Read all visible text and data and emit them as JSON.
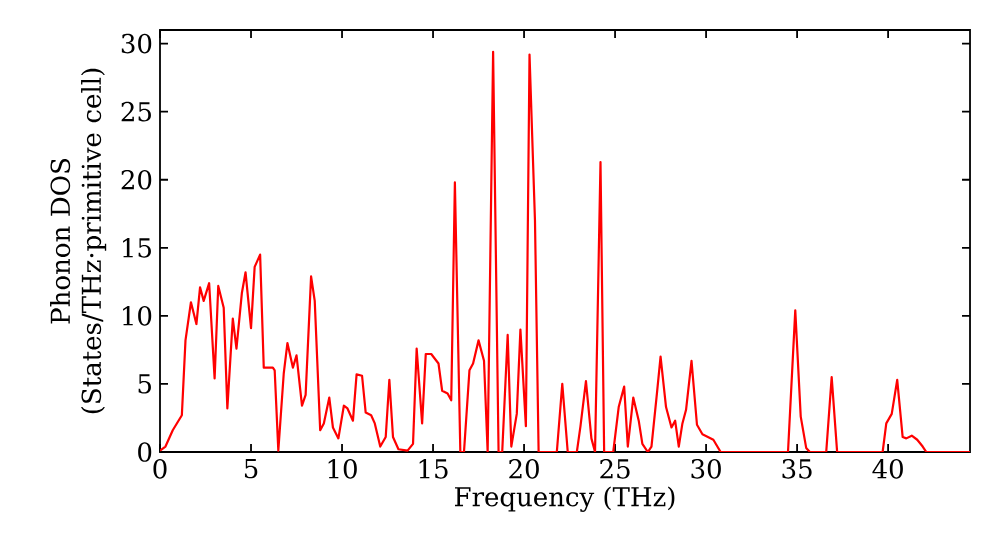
{
  "chart_data": {
    "type": "line",
    "xlabel": "Frequency (THz)",
    "ylabel": "Phonon DOS (States/THz·primitive cell)",
    "color": "#ff0000",
    "xlim": [
      0,
      44.5
    ],
    "ylim": [
      0,
      31
    ],
    "xticks": [
      0,
      5,
      10,
      15,
      20,
      25,
      30,
      35,
      40
    ],
    "yticks": [
      0,
      5,
      10,
      15,
      20,
      25,
      30
    ],
    "x": [
      0,
      0.3,
      0.7,
      1.2,
      1.4,
      1.7,
      2.0,
      2.2,
      2.4,
      2.7,
      3.0,
      3.2,
      3.5,
      3.7,
      4.0,
      4.2,
      4.5,
      4.7,
      5.0,
      5.2,
      5.5,
      5.7,
      6.2,
      6.3,
      6.5,
      6.8,
      7.0,
      7.3,
      7.5,
      7.8,
      8.0,
      8.3,
      8.5,
      8.8,
      9.0,
      9.3,
      9.5,
      9.8,
      10.1,
      10.3,
      10.6,
      10.8,
      11.1,
      11.3,
      11.6,
      11.8,
      12.1,
      12.4,
      12.6,
      12.8,
      13.1,
      13.6,
      13.9,
      14.1,
      14.4,
      14.6,
      14.9,
      15.3,
      15.5,
      15.8,
      16.0,
      16.2,
      16.5,
      16.7,
      17.0,
      17.2,
      17.5,
      17.8,
      18.0,
      18.3,
      18.6,
      18.8,
      19.1,
      19.3,
      19.6,
      19.8,
      20.1,
      20.3,
      20.6,
      20.8,
      21.8,
      22.1,
      22.4,
      22.9,
      23.1,
      23.4,
      23.7,
      23.9,
      24.2,
      24.4,
      24.9,
      25.2,
      25.5,
      25.7,
      26.0,
      26.3,
      26.5,
      26.8,
      27.0,
      27.3,
      27.5,
      27.8,
      28.1,
      28.3,
      28.5,
      28.7,
      28.9,
      29.2,
      29.5,
      29.8,
      30.1,
      30.4,
      30.8,
      34.5,
      34.9,
      35.2,
      35.5,
      35.7,
      36.6,
      36.9,
      37.2,
      39.7,
      39.9,
      40.2,
      40.5,
      40.8,
      41.0,
      41.3,
      41.6,
      41.9,
      42.1,
      44.5
    ],
    "values": [
      0.1,
      0.4,
      1.6,
      2.7,
      8.2,
      11,
      9.4,
      12.1,
      11.1,
      12.4,
      5.4,
      12.2,
      10.6,
      3.2,
      9.8,
      7.6,
      11.7,
      13.2,
      9.1,
      13.6,
      14.5,
      6.2,
      6.2,
      6.0,
      0.1,
      5.8,
      8.0,
      6.2,
      7.1,
      3.4,
      4.2,
      12.9,
      11.1,
      1.6,
      2.1,
      4.0,
      1.8,
      1.0,
      3.4,
      3.2,
      2.3,
      5.7,
      5.6,
      2.9,
      2.7,
      2.1,
      0.4,
      1.1,
      5.3,
      1.1,
      0.2,
      0.1,
      0.6,
      7.6,
      2.1,
      7.2,
      7.2,
      6.5,
      4.5,
      4.3,
      3.8,
      19.8,
      0,
      0,
      6.0,
      6.5,
      8.2,
      6.7,
      0,
      29.4,
      0,
      0,
      8.6,
      0.4,
      2.8,
      9.0,
      1.9,
      29.2,
      17.0,
      0,
      0,
      5.0,
      0,
      0,
      1.9,
      5.2,
      1.0,
      0,
      21.3,
      0,
      0,
      3.3,
      4.8,
      0.4,
      4.0,
      2.3,
      0.6,
      0,
      0.4,
      4.3,
      7.0,
      3.3,
      1.8,
      2.3,
      0.4,
      2.1,
      3.1,
      6.7,
      2.0,
      1.3,
      1.1,
      0.9,
      0,
      0,
      10.4,
      2.6,
      0.3,
      0,
      0,
      5.5,
      0,
      0,
      2.1,
      2.8,
      5.3,
      1.1,
      1.0,
      1.2,
      0.9,
      0.4,
      0,
      0
    ]
  }
}
